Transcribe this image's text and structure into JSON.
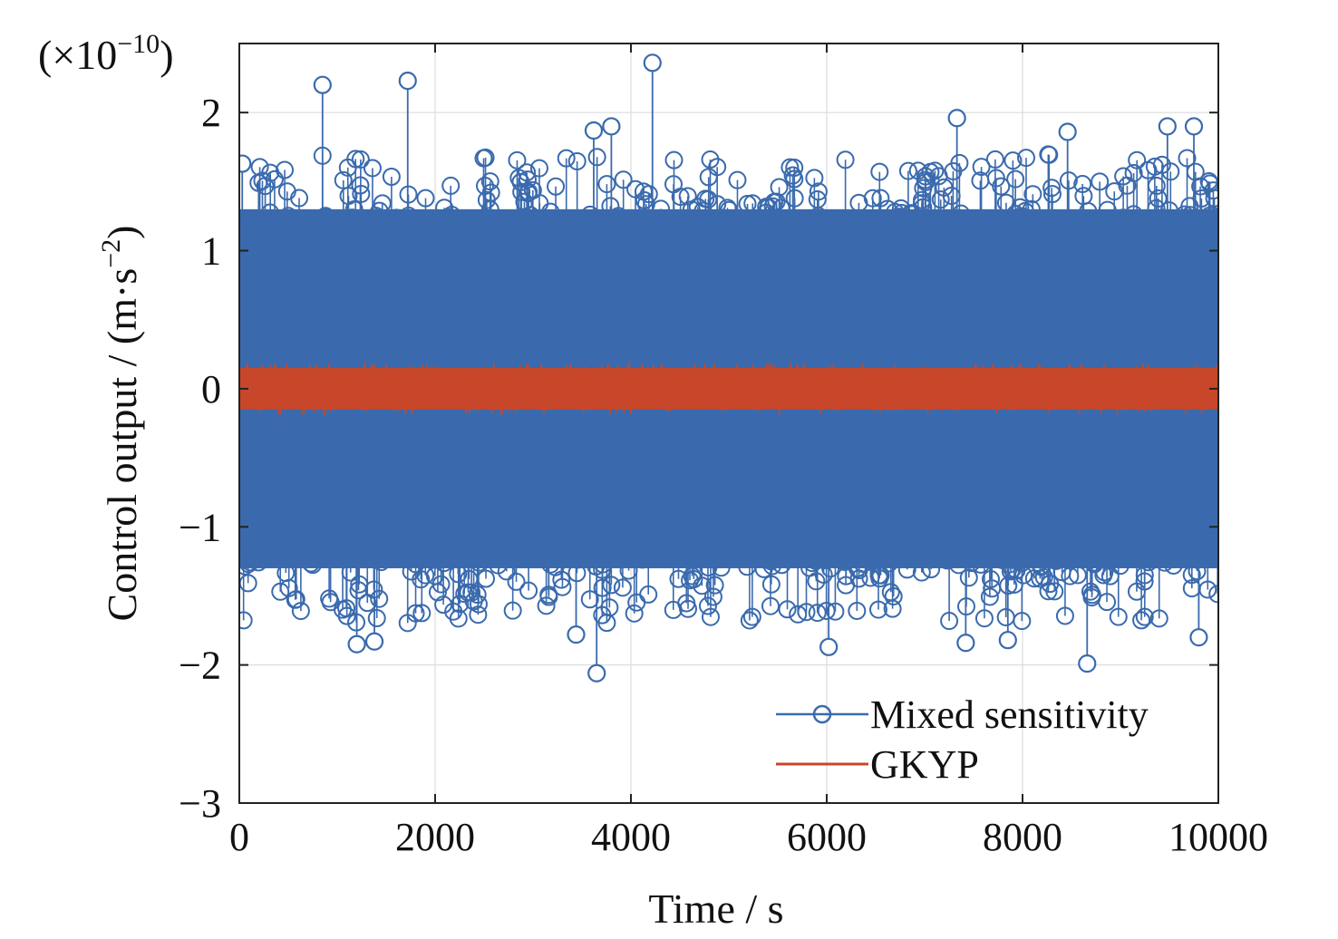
{
  "chart_data": {
    "type": "line",
    "xlabel": "Time / s",
    "ylabel_main": "Control output / (m·s",
    "ylabel_exp": "−2",
    "ylabel_close": ")",
    "scale_factor": {
      "prefix": "(×10",
      "exponent": "−10",
      "suffix": ")"
    },
    "xlim": [
      0,
      10000
    ],
    "ylim": [
      -3,
      2.5
    ],
    "x_ticks": [
      0,
      2000,
      4000,
      6000,
      8000,
      10000
    ],
    "x_tick_labels": [
      "0",
      "2000",
      "4000",
      "6000",
      "8000",
      "10000"
    ],
    "y_ticks": [
      -3,
      -2,
      -1,
      0,
      1,
      2
    ],
    "y_tick_labels": [
      "−3",
      "−2",
      "−1",
      "0",
      "1",
      "2"
    ],
    "grid": true,
    "legend_position": "bottom-right",
    "series": [
      {
        "name": "Mixed sensitivity",
        "color": "#3a6aad",
        "marker": "circle",
        "style": "stem",
        "band": [
          -1.3,
          1.3
        ],
        "peaks": [
          {
            "x": 30,
            "y": 1.63
          },
          {
            "x": 850,
            "y": 2.2
          },
          {
            "x": 1720,
            "y": 2.23
          },
          {
            "x": 3620,
            "y": 1.87
          },
          {
            "x": 3800,
            "y": 1.9
          },
          {
            "x": 4220,
            "y": 2.36
          },
          {
            "x": 7330,
            "y": 1.96
          },
          {
            "x": 8460,
            "y": 1.86
          },
          {
            "x": 9480,
            "y": 1.9
          },
          {
            "x": 9750,
            "y": 1.9
          },
          {
            "x": 1200,
            "y": -1.85
          },
          {
            "x": 1380,
            "y": -1.83
          },
          {
            "x": 3440,
            "y": -1.78
          },
          {
            "x": 3650,
            "y": -2.06
          },
          {
            "x": 6020,
            "y": -1.87
          },
          {
            "x": 7420,
            "y": -1.84
          },
          {
            "x": 7850,
            "y": -1.82
          },
          {
            "x": 8660,
            "y": -1.99
          },
          {
            "x": 9800,
            "y": -1.8
          }
        ]
      },
      {
        "name": "GKYP",
        "color": "#c8472a",
        "marker": "none",
        "style": "line",
        "band": [
          -0.15,
          0.15
        ]
      }
    ]
  }
}
